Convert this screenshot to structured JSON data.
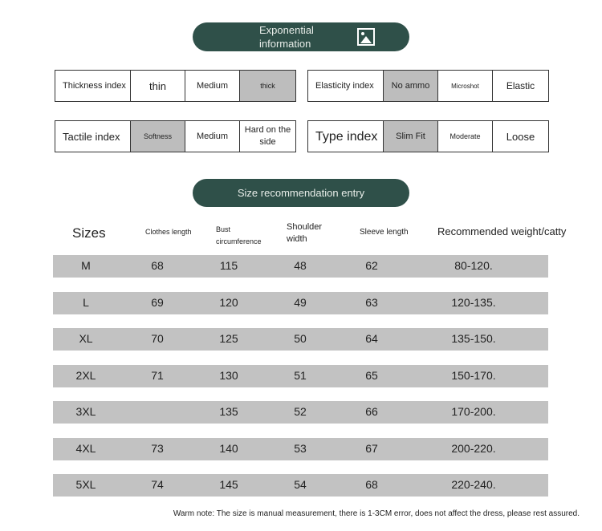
{
  "section1": {
    "title": "Exponential information",
    "icon": "image-icon"
  },
  "indices": [
    {
      "label": "Thickness index",
      "options": [
        "thin",
        "Medium",
        "thick"
      ],
      "selected": 2
    },
    {
      "label": "Elasticity index",
      "options": [
        "No ammo",
        "Microshot",
        "Elastic"
      ],
      "selected": 0
    },
    {
      "label": "Tactile index",
      "options": [
        "Softness",
        "Medium",
        "Hard on the side"
      ],
      "selected": 0
    },
    {
      "label": "Type index",
      "options": [
        "Slim Fit",
        "Moderate",
        "Loose"
      ],
      "selected": 0
    }
  ],
  "section2": {
    "title": "Size recommendation entry"
  },
  "table": {
    "headers": [
      "Sizes",
      "Clothes length",
      "Bust circumference",
      "Shoulder width",
      "Sleeve length",
      "Recommended weight/catty"
    ],
    "rows": [
      [
        "M",
        "68",
        "115",
        "48",
        "62",
        "80-120."
      ],
      [
        "L",
        "69",
        "120",
        "49",
        "63",
        "120-135."
      ],
      [
        "XL",
        "70",
        "125",
        "50",
        "64",
        "135-150."
      ],
      [
        "2XL",
        "71",
        "130",
        "51",
        "65",
        "150-170."
      ],
      [
        "3XL",
        "",
        "135",
        "52",
        "66",
        "170-200."
      ],
      [
        "4XL",
        "73",
        "140",
        "53",
        "67",
        "200-220."
      ],
      [
        "5XL",
        "74",
        "145",
        "54",
        "68",
        "220-240."
      ]
    ]
  },
  "note": "Warm note: The size is manual measurement, there is 1-3CM error, does not affect the dress, please rest assured.",
  "colors": {
    "pill": "#2f5049",
    "highlight": "#bdbdbd",
    "row": "#c2c2c2"
  }
}
